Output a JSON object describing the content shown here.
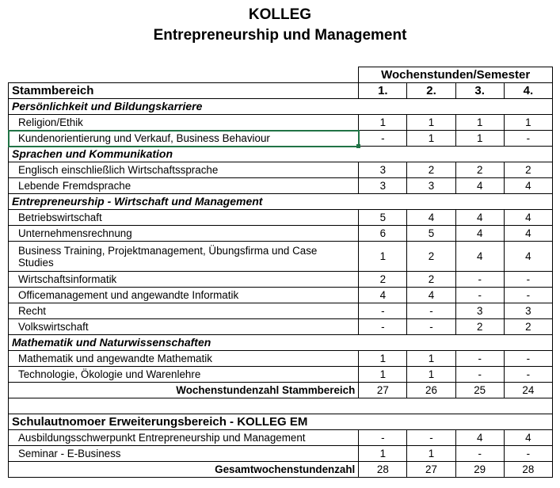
{
  "title": "KOLLEG",
  "subtitle": "Entrepreneurship und Management",
  "header_group": "Wochenstunden/Semester",
  "header_label": "Stammbereich",
  "semesters": [
    "1.",
    "2.",
    "3.",
    "4."
  ],
  "selection_color": "#217346",
  "rows": [
    {
      "type": "section",
      "label": "Persönlichkeit und Bildungskarriere"
    },
    {
      "type": "item",
      "label": "Religion/Ethik",
      "values": [
        "1",
        "1",
        "1",
        "1"
      ]
    },
    {
      "type": "item",
      "label": "Kundenorientierung und Verkauf, Business Behaviour",
      "values": [
        "-",
        "1",
        "1",
        "-"
      ],
      "selected": true
    },
    {
      "type": "section",
      "label": "Sprachen und Kommunikation"
    },
    {
      "type": "item",
      "label": "Englisch einschließlich Wirtschaftssprache",
      "values": [
        "3",
        "2",
        "2",
        "2"
      ]
    },
    {
      "type": "item",
      "label": "Lebende Fremdsprache",
      "values": [
        "3",
        "3",
        "4",
        "4"
      ]
    },
    {
      "type": "section",
      "label": "Entrepreneurship - Wirtschaft und Management"
    },
    {
      "type": "item",
      "label": "Betriebswirtschaft",
      "values": [
        "5",
        "4",
        "4",
        "4"
      ]
    },
    {
      "type": "item",
      "label": "Unternehmensrechnung",
      "values": [
        "6",
        "5",
        "4",
        "4"
      ]
    },
    {
      "type": "item",
      "label": "Business Training, Projektmanagement, Übungsfirma und Case Studies",
      "values": [
        "1",
        "2",
        "4",
        "4"
      ],
      "tall": true
    },
    {
      "type": "item",
      "label": "Wirtschaftsinformatik",
      "values": [
        "2",
        "2",
        "-",
        "-"
      ]
    },
    {
      "type": "item",
      "label": "Officemanagement und angewandte Informatik",
      "values": [
        "4",
        "4",
        "-",
        "-"
      ]
    },
    {
      "type": "item",
      "label": "Recht",
      "values": [
        "-",
        "-",
        "3",
        "3"
      ]
    },
    {
      "type": "item",
      "label": "Volkswirtschaft",
      "values": [
        "-",
        "-",
        "2",
        "2"
      ]
    },
    {
      "type": "section",
      "label": "Mathematik und Naturwissenschaften"
    },
    {
      "type": "item",
      "label": "Mathematik und angewandte Mathematik",
      "values": [
        "1",
        "1",
        "-",
        "-"
      ]
    },
    {
      "type": "item",
      "label": "Technologie, Ökologie und Warenlehre",
      "values": [
        "1",
        "1",
        "-",
        "-"
      ]
    },
    {
      "type": "total",
      "label": "Wochenstundenzahl Stammbereich",
      "values": [
        "27",
        "26",
        "25",
        "24"
      ]
    },
    {
      "type": "blank"
    },
    {
      "type": "ext",
      "label": "Schulautnomoer Erweiterungsbereich - KOLLEG EM"
    },
    {
      "type": "item",
      "label": "Ausbildungsschwerpunkt Entrepreneurship und Management",
      "values": [
        "-",
        "-",
        "4",
        "4"
      ]
    },
    {
      "type": "item",
      "label": "Seminar - E-Business",
      "values": [
        "1",
        "1",
        "-",
        "-"
      ]
    },
    {
      "type": "total",
      "label": "Gesamtwochenstundenzahl",
      "values": [
        "28",
        "27",
        "29",
        "28"
      ]
    }
  ]
}
